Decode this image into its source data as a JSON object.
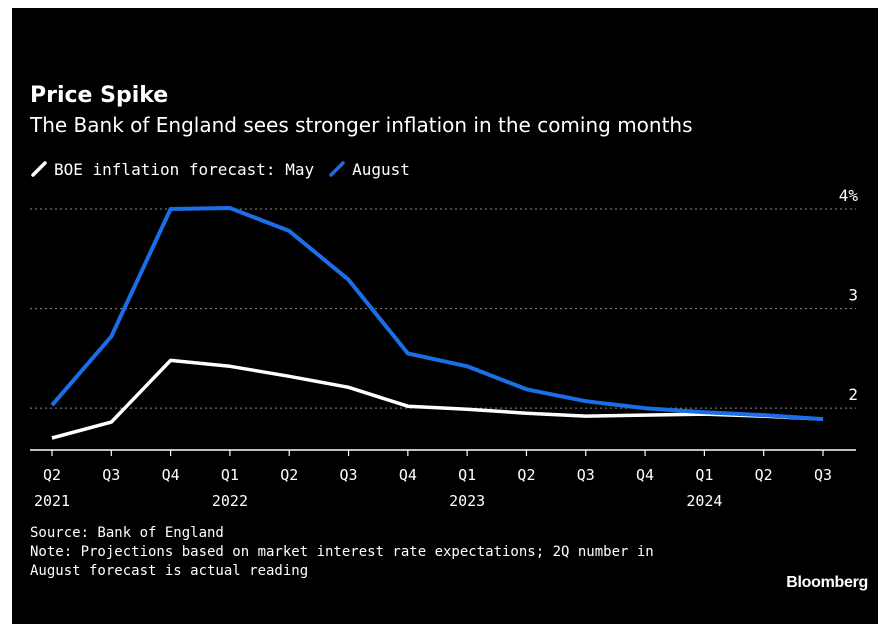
{
  "chart_data": {
    "type": "line",
    "title": "Price Spike",
    "subtitle": "The Bank of England sees stronger inflation in the coming months",
    "legend_title": "BOE inflation forecast:",
    "categories": [
      "Q2 2021",
      "Q3 2021",
      "Q4 2021",
      "Q1 2022",
      "Q2 2022",
      "Q3 2022",
      "Q4 2022",
      "Q1 2023",
      "Q2 2023",
      "Q3 2023",
      "Q4 2023",
      "Q1 2024",
      "Q2 2024",
      "Q3 2024"
    ],
    "x_tick_labels": [
      {
        "quarter": "Q2",
        "year": "2021"
      },
      {
        "quarter": "Q3",
        "year": ""
      },
      {
        "quarter": "Q4",
        "year": ""
      },
      {
        "quarter": "Q1",
        "year": "2022"
      },
      {
        "quarter": "Q2",
        "year": ""
      },
      {
        "quarter": "Q3",
        "year": ""
      },
      {
        "quarter": "Q4",
        "year": ""
      },
      {
        "quarter": "Q1",
        "year": "2023"
      },
      {
        "quarter": "Q2",
        "year": ""
      },
      {
        "quarter": "Q3",
        "year": ""
      },
      {
        "quarter": "Q4",
        "year": ""
      },
      {
        "quarter": "Q1",
        "year": "2024"
      },
      {
        "quarter": "Q2",
        "year": ""
      },
      {
        "quarter": "Q3",
        "year": ""
      }
    ],
    "series": [
      {
        "name": "May",
        "color": "#ffffff",
        "values": [
          1.7,
          1.86,
          2.48,
          2.42,
          2.32,
          2.21,
          2.02,
          1.99,
          1.95,
          1.92,
          1.93,
          1.94,
          1.92,
          1.89
        ]
      },
      {
        "name": "August",
        "color": "#1a6fe8",
        "values": [
          2.03,
          2.72,
          4.0,
          4.01,
          3.78,
          3.29,
          2.55,
          2.42,
          2.19,
          2.07,
          2.0,
          1.96,
          1.93,
          1.89
        ]
      }
    ],
    "y_ticks": [
      {
        "value": 2,
        "label": "2"
      },
      {
        "value": 3,
        "label": "3"
      },
      {
        "value": 4,
        "label": "4%"
      }
    ],
    "ylim": [
      1.58,
      4.0
    ],
    "grid": true,
    "grid_style": "dotted",
    "legend_position": "top-left"
  },
  "footer": {
    "source": "Source: Bank of England",
    "note_line1": "Note: Projections based on market interest rate expectations; 2Q number in",
    "note_line2": "August forecast is actual reading"
  },
  "brand": "Bloomberg"
}
